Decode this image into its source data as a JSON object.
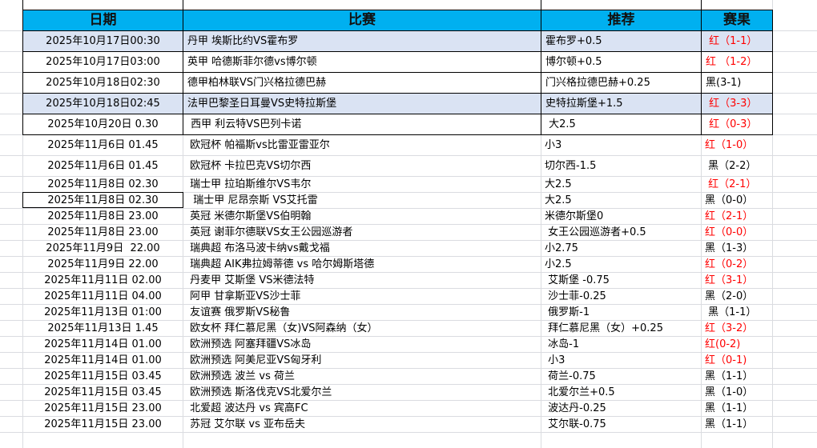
{
  "header": {
    "date": "日期",
    "match": "比赛",
    "pick": "推荐",
    "result": "赛果"
  },
  "colors": {
    "header_bg": "#00b0f0",
    "highlight_row": "#dae3f3",
    "win": "#ff0000",
    "loss": "#000000"
  },
  "rows": [
    {
      "date": "2025年10月17日00:30",
      "match": "丹甲 埃斯比约VS霍布罗",
      "pick": "霍布罗+0.5",
      "result": " 红（1-1）",
      "highlight": true
    },
    {
      "date": "2025年10月17日03:00",
      "match": "英甲 哈德斯菲尔德vs博尔顿",
      "pick": "博尔顿+0.5",
      "result": "红 （1-2）"
    },
    {
      "date": "2025年10月18日02:30",
      "match": "德甲柏林联VS门兴格拉德巴赫",
      "pick": "门兴格拉德巴赫+0.25",
      "result": "黑(3-1)"
    },
    {
      "date": "2025年10月18日02:45",
      "match": "法甲巴黎圣日耳曼VS史特拉斯堡",
      "pick": "史特拉斯堡+1.5",
      "result": " 红（3-3）",
      "highlight": true
    },
    {
      "date": "2025年10月20日 0.30",
      "match": " 西甲 利云特VS巴列卡诺",
      "pick": " 大2.5",
      "result": " 红（0-3）"
    },
    {
      "date": "2025年11月6日 01.45",
      "match": " 欧冠杯 帕福斯vs比雷亚雷亚尔",
      "pick": "小3",
      "result": "红（1-0）"
    },
    {
      "date": "2025年11月6日 01.45",
      "match": " 欧冠杯 卡拉巴克VS切尔西",
      "pick": "切尔西-1.5",
      "result": " 黑（2-2）"
    },
    {
      "date": "2025年11月8日 02.30",
      "match": " 瑞士甲 拉珀斯维尔VS韦尔",
      "pick": "大2.5",
      "result": " 红（2-1）"
    },
    {
      "date": "2025年11月8日 02.30",
      "match": "  瑞士甲 尼昂奈斯 VS艾托雷",
      "pick": "大2.5",
      "result": "黑（0-0）",
      "selected": true
    },
    {
      "date": "2025年11月8日 23.00",
      "match": " 英冠 米德尔斯堡VS伯明翰",
      "pick": "米德尔斯堡0",
      "result": "红（2-1）"
    },
    {
      "date": "2025年11月8日 23.00",
      "match": " 英冠 谢菲尔德联VS女王公园巡游者",
      "pick": " 女王公园巡游者+0.5",
      "result": "红（0-0）"
    },
    {
      "date": "2025年11月9日  22.00",
      "match": " 瑞典超 布洛马波卡纳vs戴戈福",
      "pick": "小2.75",
      "result": "黑（1-3）"
    },
    {
      "date": "2025年11月9日 22.00",
      "match": " 瑞典超 AIK弗拉姆蒂德 vs 哈尔姆斯塔德",
      "pick": "小2.5",
      "result": "红（0-2）"
    },
    {
      "date": "2025年11月11日 02.00",
      "match": " 丹麦甲 艾斯堡 VS米德法特",
      "pick": " 艾斯堡 -0.75",
      "result": "红（3-1）"
    },
    {
      "date": "2025年11月11日 04.00",
      "match": " 阿甲 甘拿斯亚VS沙士菲",
      "pick": " 沙士菲-0.25",
      "result": "黑（2-0）"
    },
    {
      "date": "2025年11月13日 01:00",
      "match": " 友谊赛 俄罗斯VS秘鲁",
      "pick": " 俄罗斯-1",
      "result": " 黑（1-1）"
    },
    {
      "date": "2025年11月13日 1.45",
      "match": " 欧女杯 拜仁慕尼黑（女)VS阿森纳（女）",
      "pick": " 拜仁慕尼黑（女）+0.25",
      "result": "红（3-2）"
    },
    {
      "date": "2025年11月14日 01.00",
      "match": " 欧洲预选 阿塞拜疆VS冰岛",
      "pick": " 冰岛-1",
      "result": "红(0-2)"
    },
    {
      "date": "2025年11月14日 01.00",
      "match": " 欧洲预选 阿美尼亚VS匈牙利",
      "pick": " 小3",
      "result": "红（0-1)"
    },
    {
      "date": "2025年11月15日 03.45",
      "match": " 欧洲预选 波兰 vs 荷兰",
      "pick": " 荷兰-0.75",
      "result": "黑（1-1）"
    },
    {
      "date": "2025年11月15日 03.45",
      "match": " 欧洲预选 斯洛伐克VS北爱尔兰",
      "pick": " 北爱尔兰+0.5",
      "result": "黑（1-0）"
    },
    {
      "date": "2025年11月15日 23.00",
      "match": " 北爱超 波达丹 vs 宾高FC",
      "pick": " 波达丹-0.25",
      "result": "黑（1-1）"
    },
    {
      "date": "2025年11月15日 23.00",
      "match": " 苏冠 艾尔联 vs 亚布岳夫",
      "pick": " 艾尔联-0.75",
      "result": "黑（1-1）"
    }
  ]
}
